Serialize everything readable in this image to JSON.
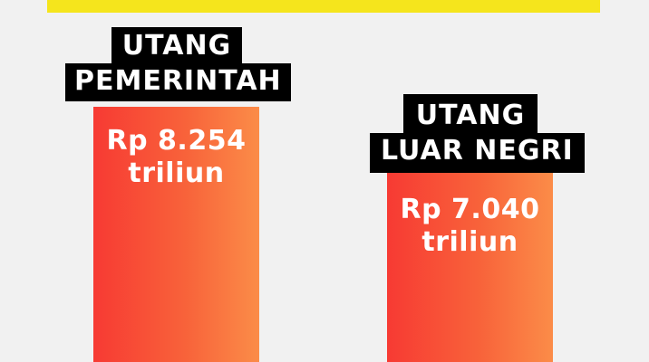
{
  "chart_data": {
    "type": "bar",
    "categories": [
      "UTANG PEMERINTAH",
      "UTANG LUAR NEGRI"
    ],
    "values": [
      8254,
      7040
    ],
    "unit": "triliun",
    "bars": [
      {
        "label_line1": "UTANG",
        "label_line2": "PEMERINTAH",
        "value_line1": "Rp 8.254",
        "value_line2": "triliun",
        "value": 8254
      },
      {
        "label_line1": "UTANG",
        "label_line2": "LUAR NEGRI",
        "value_line1": "Rp 7.040",
        "value_line2": "triliun",
        "value": 7040
      }
    ]
  },
  "colors": {
    "background": "#f1f1f1",
    "banner": "#f5e51c",
    "bar_start": "#f73a33",
    "bar_end": "#fb8c48",
    "label_bg": "#000000",
    "text": "#ffffff"
  }
}
